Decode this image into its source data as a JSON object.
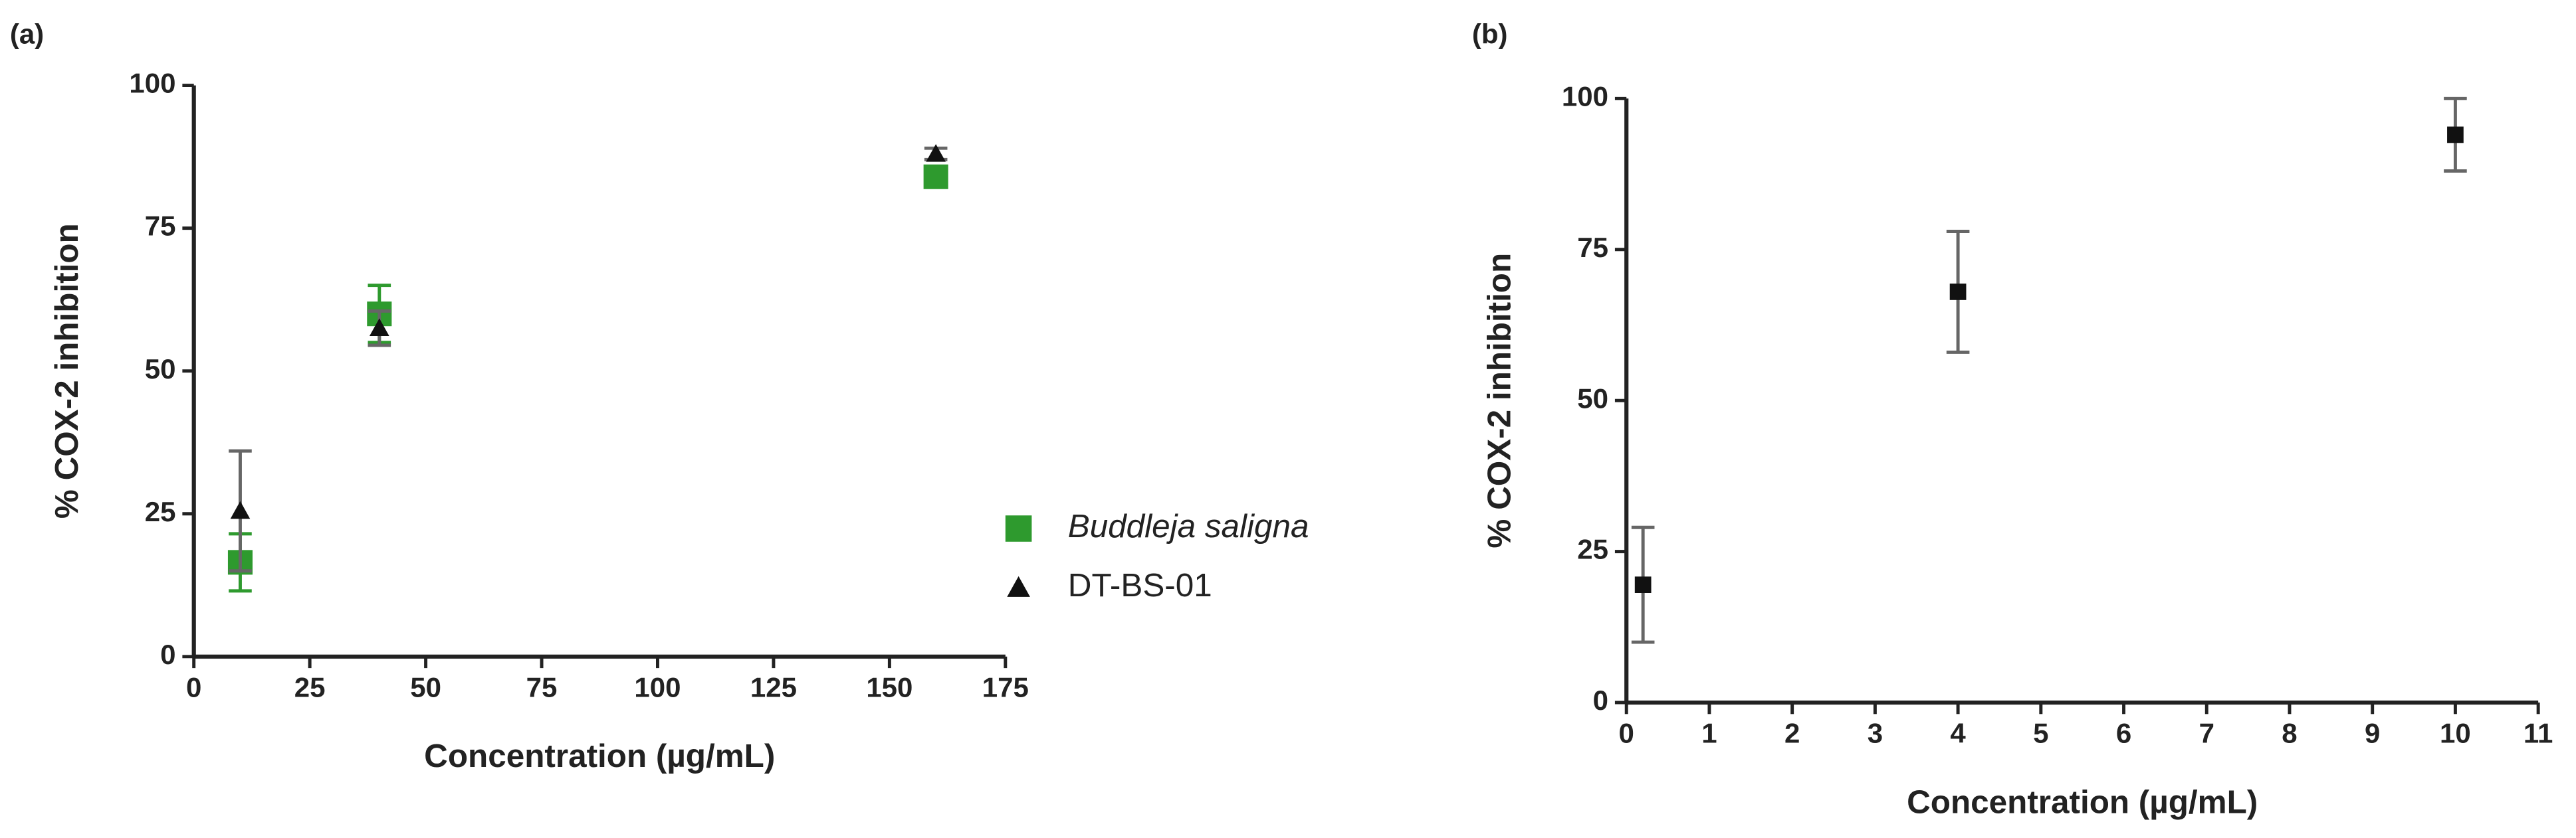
{
  "chart_data": [
    {
      "type": "scatter",
      "label": "(a)",
      "x_label": "Concentration (µg/mL)",
      "y_label": "% COX-2 inhibition",
      "xlim": [
        0,
        175
      ],
      "xticks": [
        0,
        25,
        50,
        75,
        100,
        125,
        150,
        175
      ],
      "ylim": [
        0,
        100
      ],
      "yticks": [
        0,
        25,
        50,
        75,
        100
      ],
      "legend": "right",
      "series": [
        {
          "name": "Buddleja saligna",
          "color": "#2e9a2e",
          "marker": "square",
          "x": [
            10,
            40,
            160
          ],
          "values": [
            16.5,
            60,
            84
          ],
          "errors": [
            5,
            5,
            1
          ]
        },
        {
          "name": "DT-BS-01",
          "color": "#111111",
          "marker": "triangle",
          "x": [
            10,
            40,
            160
          ],
          "values": [
            25.5,
            57.5,
            88
          ],
          "errors": [
            10.5,
            3,
            1
          ]
        }
      ]
    },
    {
      "type": "scatter",
      "label": "(b)",
      "x_label": "Concentration (µg/mL)",
      "y_label": "% COX-2 inhibition",
      "xlim": [
        0,
        11
      ],
      "xticks": [
        0,
        1,
        2,
        3,
        4,
        5,
        6,
        7,
        8,
        9,
        10,
        11
      ],
      "ylim": [
        0,
        100
      ],
      "yticks": [
        0,
        25,
        50,
        75,
        100
      ],
      "series": [
        {
          "color": "#111111",
          "marker": "square",
          "x": [
            0.2,
            4,
            10
          ],
          "values": [
            19.5,
            68,
            94
          ],
          "errors": [
            9.5,
            10,
            6
          ]
        }
      ]
    }
  ]
}
